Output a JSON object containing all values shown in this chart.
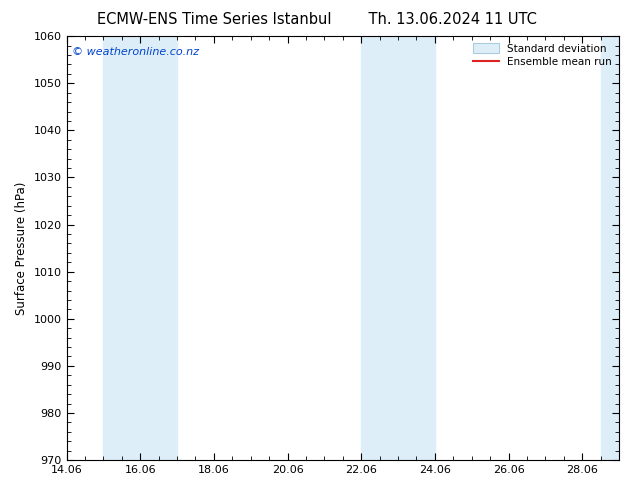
{
  "title": "ECMW-ENS Time Series Istanbul",
  "title2": "Th. 13.06.2024 11 UTC",
  "ylabel": "Surface Pressure (hPa)",
  "ylim": [
    970,
    1060
  ],
  "yticks": [
    970,
    980,
    990,
    1000,
    1010,
    1020,
    1030,
    1040,
    1050,
    1060
  ],
  "xtick_labels": [
    "14.06",
    "16.06",
    "18.06",
    "20.06",
    "22.06",
    "24.06",
    "26.06",
    "28.06"
  ],
  "xtick_positions": [
    0,
    2,
    4,
    6,
    8,
    10,
    12,
    14
  ],
  "xlim": [
    0,
    15
  ],
  "shade_bands": [
    {
      "x_start": 1.0,
      "x_end": 3.0,
      "color": "#ddeef8"
    },
    {
      "x_start": 8.0,
      "x_end": 10.0,
      "color": "#ddeef8"
    },
    {
      "x_start": 14.5,
      "x_end": 15.0,
      "color": "#ddeef8"
    }
  ],
  "mean_line_color": "#dd2222",
  "std_band_color": "#ddeef8",
  "std_band_edge_color": "#aaccdd",
  "watermark": "© weatheronline.co.nz",
  "watermark_color": "#0044cc",
  "legend_std_label": "Standard deviation",
  "legend_mean_label": "Ensemble mean run",
  "background_color": "#ffffff",
  "title_fontsize": 10.5,
  "axis_fontsize": 8.5,
  "tick_fontsize": 8,
  "title_gap": "        "
}
